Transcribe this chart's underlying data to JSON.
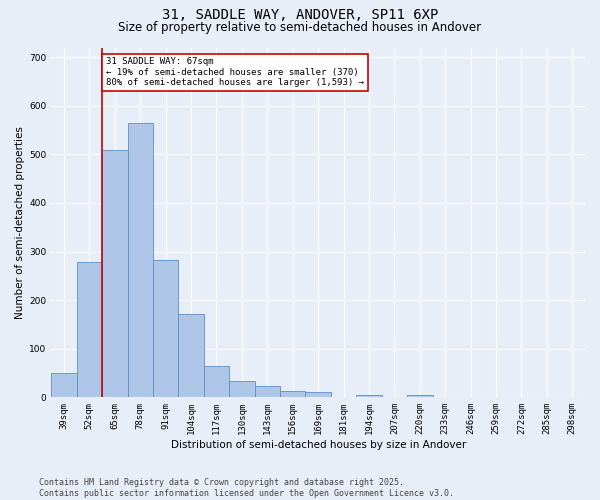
{
  "title": "31, SADDLE WAY, ANDOVER, SP11 6XP",
  "subtitle": "Size of property relative to semi-detached houses in Andover",
  "xlabel": "Distribution of semi-detached houses by size in Andover",
  "ylabel": "Number of semi-detached properties",
  "categories": [
    "39sqm",
    "52sqm",
    "65sqm",
    "78sqm",
    "91sqm",
    "104sqm",
    "117sqm",
    "130sqm",
    "143sqm",
    "156sqm",
    "169sqm",
    "181sqm",
    "194sqm",
    "207sqm",
    "220sqm",
    "233sqm",
    "246sqm",
    "259sqm",
    "272sqm",
    "285sqm",
    "298sqm"
  ],
  "values": [
    50,
    278,
    510,
    565,
    282,
    172,
    65,
    33,
    23,
    13,
    11,
    0,
    5,
    0,
    5,
    0,
    0,
    0,
    0,
    0,
    0
  ],
  "bar_color": "#aec6e8",
  "bar_edge_color": "#5b8fc9",
  "background_color": "#e8eef8",
  "grid_color": "#ffffff",
  "marker_line_color": "#cc0000",
  "annotation_text": "31 SADDLE WAY: 67sqm\n← 19% of semi-detached houses are smaller (370)\n80% of semi-detached houses are larger (1,593) →",
  "annotation_box_color": "#ffffff",
  "annotation_box_edge": "#cc0000",
  "footer_text": "Contains HM Land Registry data © Crown copyright and database right 2025.\nContains public sector information licensed under the Open Government Licence v3.0.",
  "ylim": [
    0,
    720
  ],
  "title_fontsize": 10,
  "subtitle_fontsize": 8.5,
  "axis_fontsize": 7.5,
  "tick_fontsize": 6.5,
  "footer_fontsize": 6.0
}
